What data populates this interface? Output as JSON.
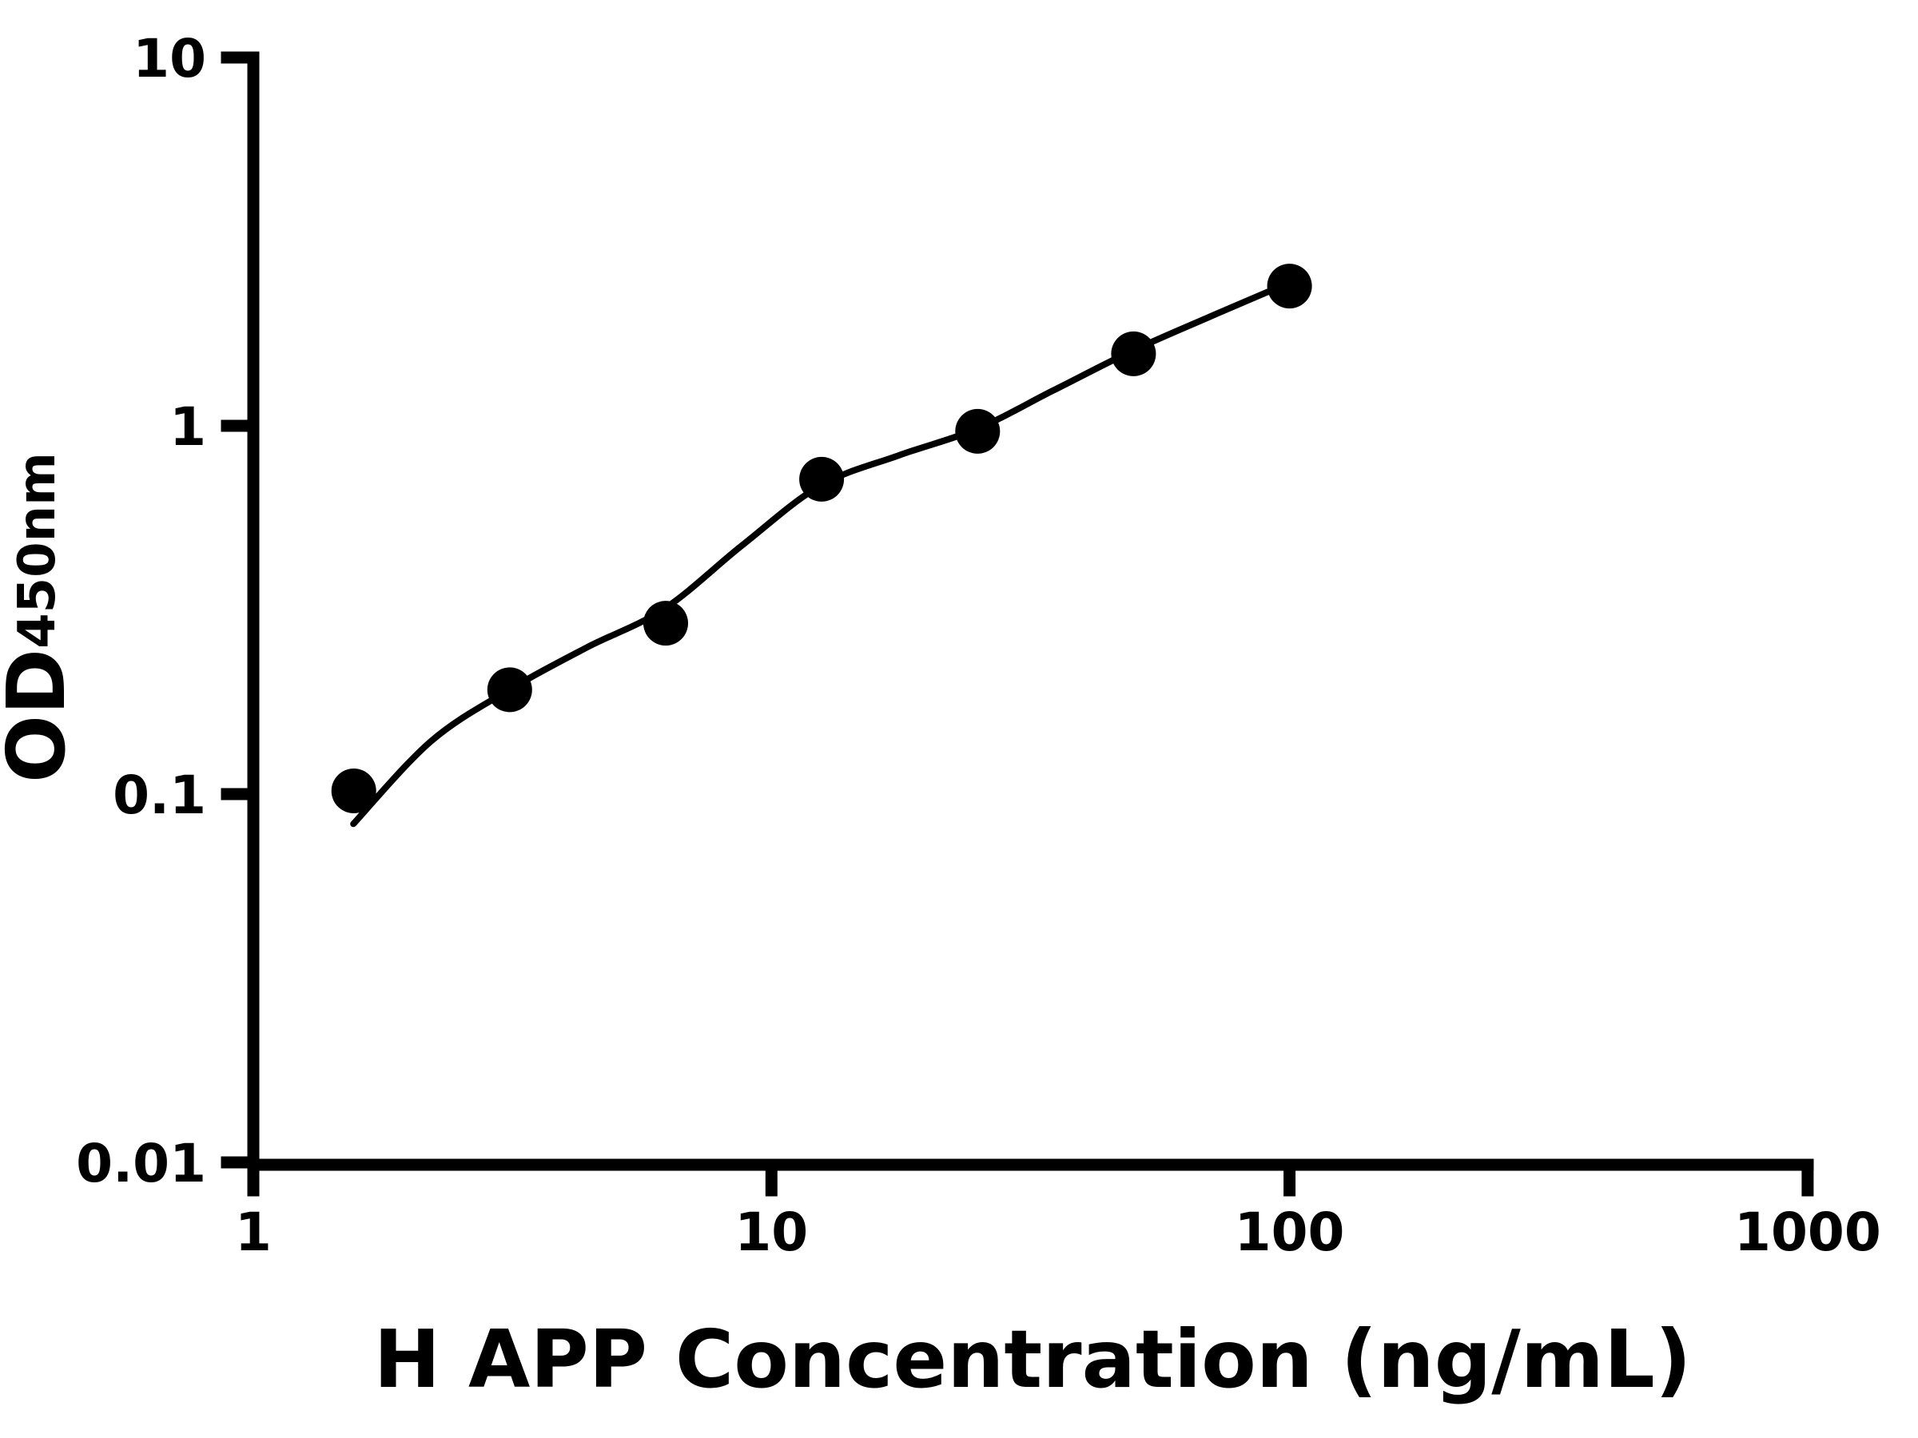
{
  "figure": {
    "background_color": "#ffffff",
    "ink_color": "#000000"
  },
  "chart_data": {
    "type": "scatter",
    "title": "",
    "xlabel": "H APP Concentration (ng/mL)",
    "ylabel": "OD450nm",
    "ylabel_main": "OD",
    "ylabel_sub": "450nm",
    "x_scale": "log10",
    "y_scale": "log10",
    "xlim": [
      1,
      1000
    ],
    "ylim": [
      0.01,
      10
    ],
    "x_ticks": [
      1,
      10,
      100,
      1000
    ],
    "x_tick_labels": [
      "1",
      "10",
      "100",
      "1000"
    ],
    "y_ticks": [
      10,
      1,
      0.1,
      0.01
    ],
    "y_tick_labels": [
      "10",
      "1",
      "0.1",
      "0.01"
    ],
    "grid": false,
    "legend": false,
    "series": [
      {
        "name": "standard-points",
        "marker": "filled-circle",
        "color": "#000000",
        "points": [
          [
            1.5625,
            0.102
          ],
          [
            3.125,
            0.192
          ],
          [
            6.25,
            0.291
          ],
          [
            12.5,
            0.716
          ],
          [
            25,
            0.966
          ],
          [
            50,
            1.568
          ],
          [
            100,
            2.396
          ]
        ]
      }
    ],
    "fit_curve": {
      "name": "fitted-standard-curve",
      "color": "#000000",
      "points": [
        [
          1.56,
          0.083
        ],
        [
          2.2,
          0.139
        ],
        [
          3.12,
          0.192
        ],
        [
          4.4,
          0.25
        ],
        [
          6.2,
          0.318
        ],
        [
          8.77,
          0.473
        ],
        [
          12.4,
          0.687
        ],
        [
          17.6,
          0.831
        ],
        [
          24.9,
          0.98
        ],
        [
          34.9,
          1.245
        ],
        [
          49.4,
          1.591
        ],
        [
          69.9,
          1.973
        ],
        [
          99.0,
          2.434
        ]
      ]
    }
  }
}
